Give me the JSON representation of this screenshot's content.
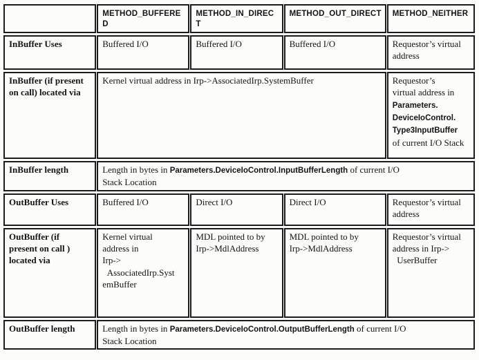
{
  "colors": {
    "background": "#fcfcfa",
    "text": "#141414",
    "border": "#1b1b1b"
  },
  "table": {
    "columns": [
      "",
      "METHOD_BUFFERED",
      "METHOD_IN_DIRECT",
      "METHOD_OUT_DIRECT",
      "METHOD_NEITHER"
    ],
    "rows": {
      "in_uses": {
        "label": "InBuffer Uses",
        "buffered": "Buffered I/O",
        "in_direct": "Buffered I/O",
        "out_direct": "Buffered I/O",
        "neither": "Requestor’s virtual\naddress"
      },
      "in_located": {
        "label": "InBuffer (if present\non call) located via",
        "span_buffered_to_out_direct": "Kernel virtual address in Irp->AssociatedIrp.SystemBuffer",
        "neither": [
          {
            "t": "Requestor’s\nvirtual address in\n"
          },
          {
            "t": "Parameters.\nDeviceIoControl.\nType3InputBuffer",
            "param": true
          },
          {
            "t": "\nof current I/O Stack"
          }
        ]
      },
      "in_length": {
        "label": "InBuffer length",
        "span_all": [
          {
            "t": "Length in bytes in "
          },
          {
            "t": "Parameters.DeviceIoControl.InputBufferLength",
            "param": true
          },
          {
            "t": " of current I/O\nStack Location"
          }
        ]
      },
      "out_uses": {
        "label": "OutBuffer Uses",
        "buffered": "Buffered I/O",
        "in_direct": "Direct I/O",
        "out_direct": "Direct I/O",
        "neither": "Requestor’s virtual\naddress"
      },
      "out_located": {
        "label": "OutBuffer (if\npresent on call )\nlocated via",
        "buffered": "Kernel virtual\naddress in\nIrp->\n  AssociatedIrp.Syst\nemBuffer",
        "in_direct": "MDL pointed to by\nIrp->MdlAddress",
        "out_direct": "MDL pointed to by\nIrp->MdlAddress",
        "neither": "Requestor’s virtual\naddress in Irp->\n  UserBuffer"
      },
      "out_length": {
        "label": "OutBuffer length",
        "span_all": [
          {
            "t": "Length in bytes in "
          },
          {
            "t": "Parameters.DeviceIoControl.OutputBufferLength",
            "param": true
          },
          {
            "t": " of current I/O\nStack Location"
          }
        ]
      }
    }
  }
}
